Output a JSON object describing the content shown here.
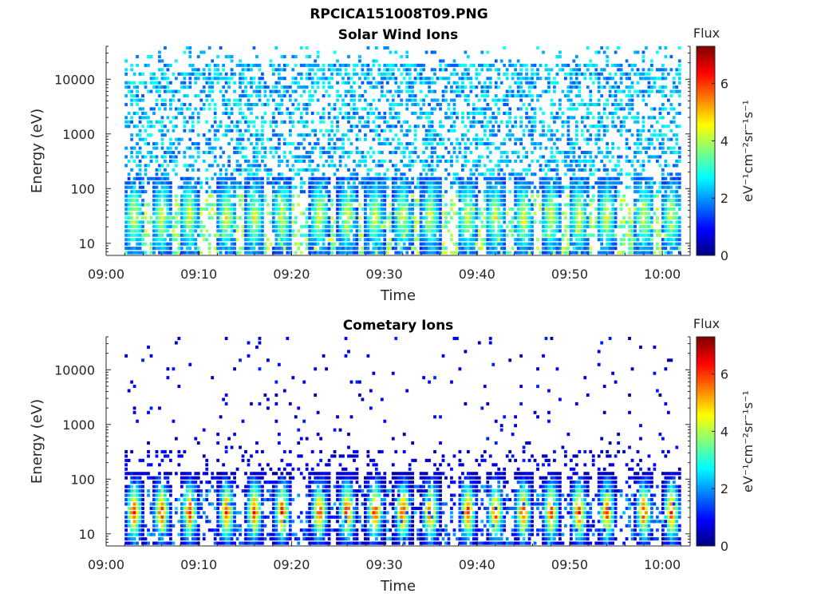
{
  "page_title": "RPCICA151008T09.PNG",
  "chart_data": [
    {
      "type": "heatmap",
      "title": "Solar Wind Ions",
      "xlabel": "Time",
      "ylabel": "Energy (eV)",
      "x_tick_labels": [
        "09:00",
        "09:10",
        "09:20",
        "09:30",
        "09:40",
        "09:50",
        "10:00"
      ],
      "x_range": [
        "09:00",
        "10:03"
      ],
      "y_scale": "log",
      "y_tick_labels": [
        "10",
        "100",
        "1000",
        "10000"
      ],
      "y_range": [
        6,
        40000
      ],
      "colorbar": {
        "title": "Flux",
        "units": "eV⁻¹cm⁻²sr⁻¹s⁻¹",
        "ticks": [
          "0",
          "2",
          "4",
          "6"
        ],
        "range": [
          0,
          7.3
        ],
        "colormap": [
          "#00007f",
          "#0000ff",
          "#007fff",
          "#00ffff",
          "#7fff7f",
          "#ffff00",
          "#ff7f00",
          "#ff0000",
          "#7f0000"
        ]
      },
      "data_start": "09:02",
      "data_end": "10:02",
      "burst_times": [
        "09:03",
        "09:06",
        "09:09",
        "09:13",
        "09:16",
        "09:19",
        "09:23",
        "09:26",
        "09:29",
        "09:32",
        "09:35",
        "09:39",
        "09:42",
        "09:45",
        "09:48",
        "09:51",
        "09:54",
        "09:58",
        "10:01"
      ],
      "background_flux_range": [
        1.5,
        3.0
      ],
      "burst_peak_flux": 4.8,
      "burst_peak_energy_eV": 30,
      "grid": false
    },
    {
      "type": "heatmap",
      "title": "Cometary Ions",
      "xlabel": "Time",
      "ylabel": "Energy (eV)",
      "x_tick_labels": [
        "09:00",
        "09:10",
        "09:20",
        "09:30",
        "09:40",
        "09:50",
        "10:00"
      ],
      "x_range": [
        "09:00",
        "10:03"
      ],
      "y_scale": "log",
      "y_tick_labels": [
        "10",
        "100",
        "1000",
        "10000"
      ],
      "y_range": [
        6,
        40000
      ],
      "colorbar": {
        "title": "Flux",
        "units": "eV⁻¹cm⁻²sr⁻¹s⁻¹",
        "ticks": [
          "0",
          "2",
          "4",
          "6"
        ],
        "range": [
          0,
          7.3
        ],
        "colormap": [
          "#00007f",
          "#0000ff",
          "#007fff",
          "#00ffff",
          "#7fff7f",
          "#ffff00",
          "#ff7f00",
          "#ff0000",
          "#7f0000"
        ]
      },
      "data_start": "09:02",
      "data_end": "10:02",
      "burst_times": [
        "09:03",
        "09:06",
        "09:09",
        "09:13",
        "09:16",
        "09:19",
        "09:23",
        "09:26",
        "09:29",
        "09:32",
        "09:35",
        "09:39",
        "09:42",
        "09:45",
        "09:48",
        "09:51",
        "09:54",
        "09:58",
        "10:01"
      ],
      "background_flux_range": [
        0.3,
        1.2
      ],
      "burst_peak_flux": 6.8,
      "burst_peak_energy_eV": 25,
      "grid": false
    }
  ]
}
